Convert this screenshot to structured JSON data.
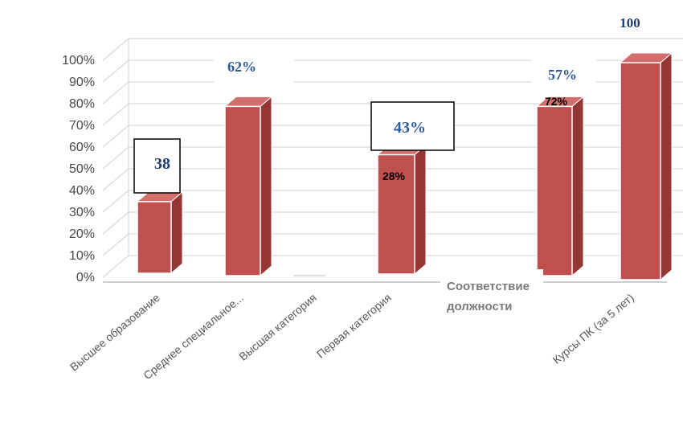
{
  "chart_data": {
    "type": "bar",
    "title": "",
    "xlabel": "",
    "ylabel": "",
    "ylim": [
      0,
      100
    ],
    "y_ticks": [
      "0%",
      "10%",
      "20%",
      "30%",
      "40%",
      "50%",
      "60%",
      "70%",
      "80%",
      "90%",
      "100%"
    ],
    "grid": true,
    "style": "3d-column",
    "bar_color": "#c0504d",
    "categories": [
      "Высшее образование",
      "Среднее специальное...",
      "Высшая категория",
      "Первая категория",
      "Соответствие должности",
      "Курсы ПК (за 5 лет)"
    ],
    "values": [
      33,
      78,
      0,
      55,
      78,
      100
    ],
    "annotations": [
      {
        "category": "Высшее образование",
        "text": "38",
        "boxed": true
      },
      {
        "category": "Среднее специальное...",
        "text": "62%",
        "boxed": false
      },
      {
        "category": "Первая категория",
        "text": "43%",
        "boxed": true
      },
      {
        "category": "Первая категория",
        "text": "28%",
        "boxed": false
      },
      {
        "category": "Соответствие должности",
        "text": "57%",
        "boxed": false
      },
      {
        "category": "Соответствие должности",
        "text": "72%",
        "boxed": false
      },
      {
        "category": "Курсы ПК (за 5 лет)",
        "text": "100",
        "boxed": false
      }
    ],
    "overlay_label": [
      "Соответствие",
      "должности"
    ]
  }
}
